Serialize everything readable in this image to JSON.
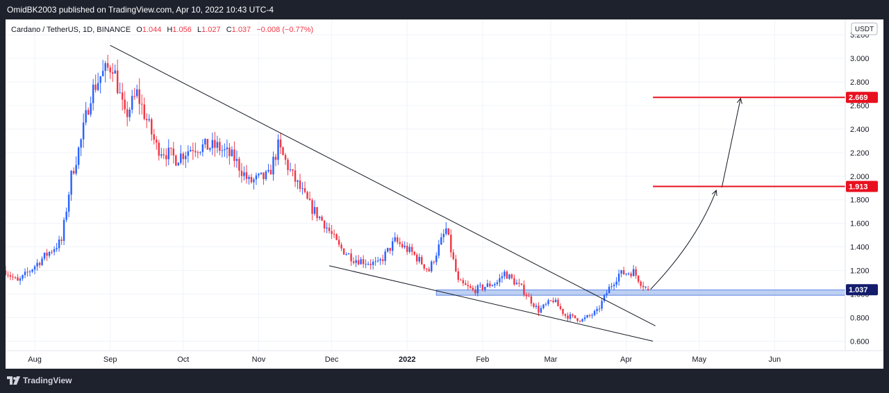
{
  "header": {
    "published_line": "OmidBK2003 published on TradingView.com, Apr 10, 2022 10:43 UTC-4"
  },
  "legend": {
    "symbol": "Cardano / TetherUS, 1D, BINANCE",
    "open_label": "O",
    "open": "1.044",
    "high_label": "H",
    "high": "1.056",
    "low_label": "L",
    "low": "1.027",
    "close_label": "C",
    "close": "1.037",
    "change": "−0.008 (−0.77%)"
  },
  "currency_button": "USDT",
  "footer": {
    "brand": "TradingView"
  },
  "colors": {
    "up": "#2962ff",
    "down": "#f23645",
    "target_line": "#e8101f",
    "price_label": "#131d6b",
    "zone": "#aec4ef",
    "trendline": "#131722"
  },
  "chart_data": {
    "type": "candlestick",
    "title": "Cardano / TetherUS, 1D, BINANCE",
    "y_axis_labels": [
      "3.200",
      "3.000",
      "2.800",
      "2.600",
      "2.400",
      "2.200",
      "2.000",
      "1.800",
      "1.600",
      "1.400",
      "1.200",
      "1.000",
      "0.800",
      "0.600"
    ],
    "y_range": [
      0.52,
      3.33
    ],
    "x_axis_labels": [
      {
        "label": "Aug",
        "date": "2021-08-01"
      },
      {
        "label": "Sep",
        "date": "2021-09-01"
      },
      {
        "label": "Oct",
        "date": "2021-10-01"
      },
      {
        "label": "Nov",
        "date": "2021-11-01"
      },
      {
        "label": "Dec",
        "date": "2021-12-01"
      },
      {
        "label": "2022",
        "date": "2022-01-01"
      },
      {
        "label": "Feb",
        "date": "2022-02-01"
      },
      {
        "label": "Mar",
        "date": "2022-03-01"
      },
      {
        "label": "Apr",
        "date": "2022-04-01"
      },
      {
        "label": "May",
        "date": "2022-05-01"
      },
      {
        "label": "Jun",
        "date": "2022-06-01"
      }
    ],
    "x_range": [
      "2021-07-20",
      "2022-06-30"
    ],
    "waypoints": [
      {
        "date": "2021-07-20",
        "price": 1.2
      },
      {
        "date": "2021-07-25",
        "price": 1.1
      },
      {
        "date": "2021-08-04",
        "price": 1.3
      },
      {
        "date": "2021-08-12",
        "price": 1.45
      },
      {
        "date": "2021-08-16",
        "price": 2.0
      },
      {
        "date": "2021-08-20",
        "price": 2.3
      },
      {
        "date": "2021-08-24",
        "price": 2.7
      },
      {
        "date": "2021-08-28",
        "price": 2.85
      },
      {
        "date": "2021-09-02",
        "price": 2.95
      },
      {
        "date": "2021-09-07",
        "price": 2.5
      },
      {
        "date": "2021-09-12",
        "price": 2.7
      },
      {
        "date": "2021-09-20",
        "price": 2.25
      },
      {
        "date": "2021-09-28",
        "price": 2.15
      },
      {
        "date": "2021-10-05",
        "price": 2.25
      },
      {
        "date": "2021-10-15",
        "price": 2.25
      },
      {
        "date": "2021-10-22",
        "price": 2.15
      },
      {
        "date": "2021-10-28",
        "price": 1.95
      },
      {
        "date": "2021-11-05",
        "price": 2.0
      },
      {
        "date": "2021-11-09",
        "price": 2.25
      },
      {
        "date": "2021-11-15",
        "price": 2.0
      },
      {
        "date": "2021-11-22",
        "price": 1.75
      },
      {
        "date": "2021-11-28",
        "price": 1.6
      },
      {
        "date": "2021-12-04",
        "price": 1.4
      },
      {
        "date": "2021-12-10",
        "price": 1.3
      },
      {
        "date": "2021-12-20",
        "price": 1.25
      },
      {
        "date": "2021-12-27",
        "price": 1.45
      },
      {
        "date": "2022-01-03",
        "price": 1.35
      },
      {
        "date": "2022-01-10",
        "price": 1.2
      },
      {
        "date": "2022-01-17",
        "price": 1.55
      },
      {
        "date": "2022-01-22",
        "price": 1.1
      },
      {
        "date": "2022-01-28",
        "price": 1.03
      },
      {
        "date": "2022-02-07",
        "price": 1.1
      },
      {
        "date": "2022-02-10",
        "price": 1.18
      },
      {
        "date": "2022-02-17",
        "price": 1.05
      },
      {
        "date": "2022-02-24",
        "price": 0.86
      },
      {
        "date": "2022-03-02",
        "price": 0.95
      },
      {
        "date": "2022-03-07",
        "price": 0.82
      },
      {
        "date": "2022-03-14",
        "price": 0.78
      },
      {
        "date": "2022-03-20",
        "price": 0.85
      },
      {
        "date": "2022-03-25",
        "price": 1.05
      },
      {
        "date": "2022-03-29",
        "price": 1.17
      },
      {
        "date": "2022-04-04",
        "price": 1.19
      },
      {
        "date": "2022-04-07",
        "price": 1.1
      },
      {
        "date": "2022-04-10",
        "price": 1.037
      }
    ],
    "trendlines": [
      {
        "name": "upper",
        "from": {
          "date": "2021-09-01",
          "price": 3.11
        },
        "to": {
          "date": "2022-04-13",
          "price": 0.73
        }
      },
      {
        "name": "lower",
        "from": {
          "date": "2021-11-30",
          "price": 1.24
        },
        "to": {
          "date": "2022-04-12",
          "price": 0.6
        }
      }
    ],
    "support_zone": {
      "from": "2022-01-13",
      "to": "2022-06-30",
      "low": 0.99,
      "high": 1.035
    },
    "levels": [
      {
        "value": 1.913,
        "label": "1.913",
        "from": "2022-04-12"
      },
      {
        "value": 2.669,
        "label": "2.669",
        "from": "2022-04-12"
      }
    ],
    "last_price": {
      "value": 1.037,
      "label": "1.037"
    },
    "projection": [
      {
        "date": "2022-04-11",
        "price": 1.04
      },
      {
        "date": "2022-04-30",
        "price": 1.45
      },
      {
        "date": "2022-05-08",
        "price": 1.88
      },
      {
        "date": "2022-05-18",
        "price": 2.66
      }
    ]
  }
}
